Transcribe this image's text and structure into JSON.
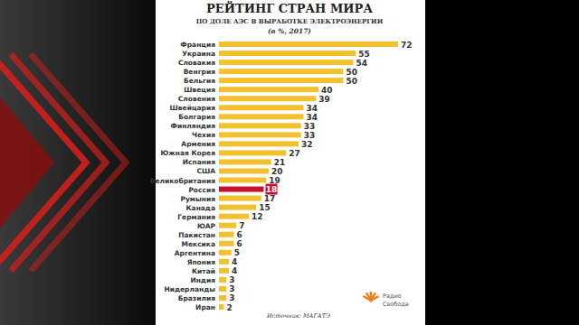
{
  "chart_data": {
    "type": "bar",
    "title": "РЕЙТИНГ СТРАН МИРА",
    "subtitle": "ПО ДОЛЕ АЭС В ВЫРАБОТКЕ ЭЛЕКТРОЭНЕРГИИ",
    "annotations": [
      "(в %, 2017)",
      "Источник: МАГАТЭ",
      "Радио",
      "Свобода"
    ],
    "categories": [
      "Франция",
      "Украина",
      "Словакия",
      "Венгрия",
      "Бельгия",
      "Швеция",
      "Словения",
      "Швейцария",
      "Болгария",
      "Финляндия",
      "Чехия",
      "Армения",
      "Южная Корея",
      "Испания",
      "США",
      "Великобритания",
      "Россия",
      "Румыния",
      "Канада",
      "Германия",
      "ЮАР",
      "Пакистан",
      "Мексика",
      "Аргентина",
      "Япония",
      "Китай",
      "Индия",
      "Нидерланды",
      "Бразилия",
      "Иран"
    ],
    "values": [
      72,
      55,
      54,
      50,
      50,
      40,
      39,
      34,
      34,
      33,
      33,
      32,
      27,
      21,
      20,
      19,
      18,
      17,
      15,
      12,
      7,
      6,
      6,
      5,
      4,
      4,
      3,
      3,
      3,
      2
    ],
    "colors": [
      "#f2c12e",
      "#f2c12e",
      "#f2c12e",
      "#f2c12e",
      "#f2c12e",
      "#f2c12e",
      "#f2c12e",
      "#f2c12e",
      "#f2c12e",
      "#f2c12e",
      "#f2c12e",
      "#f2c12e",
      "#f2c12e",
      "#f2c12e",
      "#f2c12e",
      "#f2c12e",
      "#c8102e",
      "#f2c12e",
      "#f2c12e",
      "#f2c12e",
      "#f2c12e",
      "#f2c12e",
      "#f2c12e",
      "#f2c12e",
      "#f2c12e",
      "#f2c12e",
      "#f2c12e",
      "#f2c12e",
      "#f2c12e",
      "#f2c12e"
    ],
    "orientation": "horizontal",
    "data_labels": true,
    "tick_labels": "y",
    "xlim": [
      0,
      72
    ]
  }
}
